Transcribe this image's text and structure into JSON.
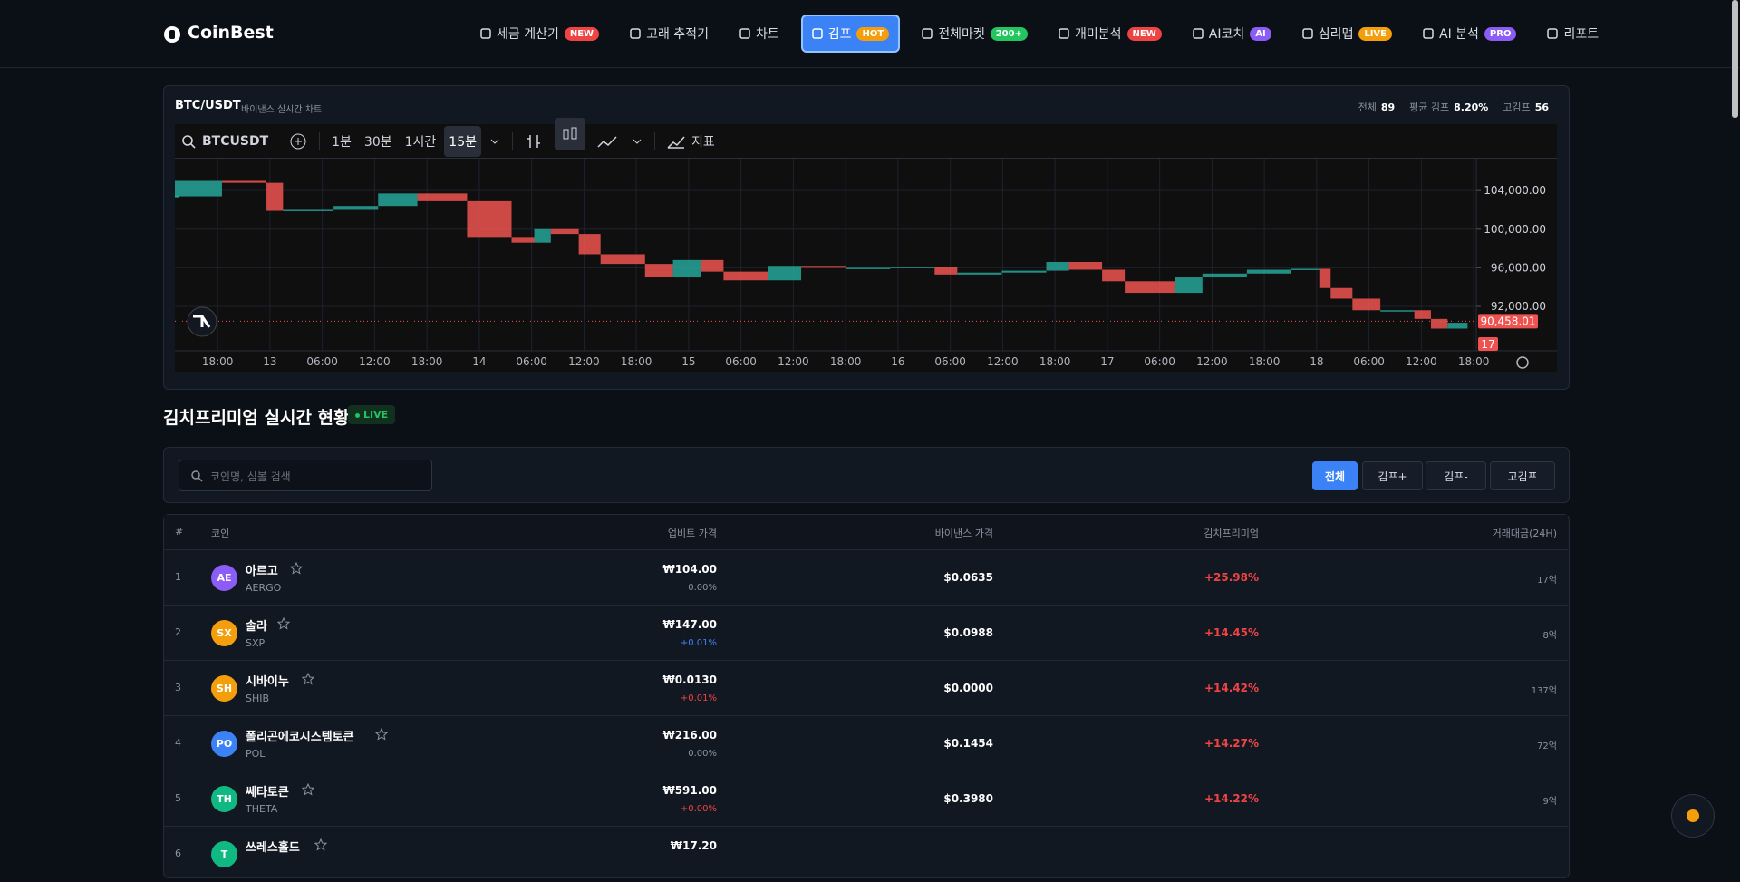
{
  "nav": {
    "logo": "CoinBest",
    "items": [
      {
        "label": "세금 계산기",
        "badge": "NEW",
        "badge_color": "#ef4444"
      },
      {
        "label": "고래 추적기"
      },
      {
        "label": "차트"
      },
      {
        "label": "김프",
        "badge": "HOT",
        "badge_color": "#f59e0b",
        "active": true
      },
      {
        "label": "전체마켓",
        "badge": "200+",
        "badge_color": "#22c55e"
      },
      {
        "label": "개미분석",
        "badge": "NEW",
        "badge_color": "#ef4444"
      },
      {
        "label": "AI코치",
        "badge": "AI",
        "badge_color": "#8b5cf6"
      },
      {
        "label": "심리맵",
        "badge": "LIVE",
        "badge_color": "#f59e0b"
      },
      {
        "label": "AI 분석",
        "badge": "PRO",
        "badge_color": "#8b5cf6"
      },
      {
        "label": "리포트"
      }
    ]
  },
  "chart_panel": {
    "symbol": "BTC/USDT",
    "subtitle": "바이낸스 실시간 차트",
    "stats": [
      {
        "label": "전체",
        "value": "89"
      },
      {
        "label": "평균 김프",
        "value": "8.20%"
      },
      {
        "label": "고김프",
        "value": "56"
      }
    ],
    "toolbar": {
      "search": "BTCUSDT",
      "intervals": [
        "1분",
        "30분",
        "1시간",
        "15분"
      ],
      "active_interval": 3,
      "indicators": "지표"
    }
  },
  "chart_data": {
    "type": "candlestick",
    "up_color": "#26a69a",
    "down_color": "#ef5350",
    "grid": true,
    "x": [
      13.1,
      18.5,
      23.6,
      25.5,
      31.3,
      36.4,
      40.9,
      46.6,
      51.7,
      54.3,
      56.2,
      59.4,
      61.9,
      67.0,
      70.2,
      73.4,
      76.0,
      81.1,
      84.9,
      90.0,
      95.1,
      100.2,
      102.8,
      107.9,
      113.0,
      115.6,
      119.4,
      122.0,
      127.7,
      130.9,
      136.0,
      141.1,
      144.3,
      145.6,
      148.1,
      151.3,
      155.2,
      157.1,
      159.0,
      161.3
    ],
    "values": [
      103400,
      105000,
      104800,
      101900,
      102000,
      102400,
      103700,
      102900,
      99100,
      98600,
      100000,
      99500,
      97400,
      96400,
      95000,
      96800,
      95600,
      94700,
      96200,
      96000,
      96000,
      96100,
      95300,
      95500,
      95700,
      96600,
      95800,
      94600,
      93400,
      95000,
      95400,
      95800,
      95900,
      93900,
      92800,
      91600,
      91600,
      90700,
      89700,
      90300
    ],
    "xlim": [
      13.1,
      162.3
    ],
    "xticks": [
      {
        "value": 18,
        "label": "18:00"
      },
      {
        "value": 24,
        "label": "13"
      },
      {
        "value": 30,
        "label": "06:00"
      },
      {
        "value": 36,
        "label": "12:00"
      },
      {
        "value": 42,
        "label": "18:00"
      },
      {
        "value": 48,
        "label": "14"
      },
      {
        "value": 54,
        "label": "06:00"
      },
      {
        "value": 60,
        "label": "12:00"
      },
      {
        "value": 66,
        "label": "18:00"
      },
      {
        "value": 72,
        "label": "15"
      },
      {
        "value": 78,
        "label": "06:00"
      },
      {
        "value": 84,
        "label": "12:00"
      },
      {
        "value": 90,
        "label": "18:00"
      },
      {
        "value": 96,
        "label": "16"
      },
      {
        "value": 102,
        "label": "06:00"
      },
      {
        "value": 108,
        "label": "12:00"
      },
      {
        "value": 114,
        "label": "18:00"
      },
      {
        "value": 120,
        "label": "17"
      },
      {
        "value": 126,
        "label": "06:00"
      },
      {
        "value": 132,
        "label": "12:00"
      },
      {
        "value": 138,
        "label": "18:00"
      },
      {
        "value": 144,
        "label": "18"
      },
      {
        "value": 150,
        "label": "06:00"
      },
      {
        "value": 156,
        "label": "12:00"
      },
      {
        "value": 162,
        "label": "18:00"
      }
    ],
    "ylim": [
      87400,
      107300
    ],
    "yticks": [
      {
        "value": 92000,
        "label": "92,000.00"
      },
      {
        "value": 96000,
        "label": "96,000.00"
      },
      {
        "value": 100000,
        "label": "100,000.00"
      },
      {
        "value": 104000,
        "label": "104,000.00"
      }
    ],
    "last_price": {
      "value": 90458.01,
      "label": "90,458.01"
    },
    "volume_label": "17"
  },
  "section": {
    "title": "김치프리미엄 실시간 현황",
    "badge": "LIVE"
  },
  "filters": {
    "search_placeholder": "코인명, 심볼 검색",
    "buttons": [
      "전체",
      "김프+",
      "김프-",
      "고김프"
    ],
    "active": 0
  },
  "table": {
    "columns": [
      "#",
      "코인",
      "업비트 가격",
      "바이낸스 가격",
      "김치프리미엄",
      "거래대금(24H)"
    ],
    "rows": [
      {
        "rank": "1",
        "icon": "AE",
        "icon_color": "#8b5cf6",
        "name": "아르고",
        "symbol": "AERGO",
        "upbit": "₩104.00",
        "change": "0.00%",
        "change_color": "#8b93a1",
        "binance": "$0.0635",
        "premium": "+25.98%",
        "volume": "17억"
      },
      {
        "rank": "2",
        "icon": "SX",
        "icon_color": "#f59e0b",
        "name": "솔라",
        "symbol": "SXP",
        "upbit": "₩147.00",
        "change": "+0.01%",
        "change_color": "#3b82f6",
        "binance": "$0.0988",
        "premium": "+14.45%",
        "volume": "8억"
      },
      {
        "rank": "3",
        "icon": "SH",
        "icon_color": "#f59e0b",
        "name": "시바이누",
        "symbol": "SHIB",
        "upbit": "₩0.0130",
        "change": "+0.01%",
        "change_color": "#ef4444",
        "binance": "$0.0000",
        "premium": "+14.42%",
        "volume": "137억"
      },
      {
        "rank": "4",
        "icon": "PO",
        "icon_color": "#3b82f6",
        "name": "폴리곤에코시스템토큰",
        "symbol": "POL",
        "upbit": "₩216.00",
        "change": "0.00%",
        "change_color": "#8b93a1",
        "binance": "$0.1454",
        "premium": "+14.27%",
        "volume": "72억"
      },
      {
        "rank": "5",
        "icon": "TH",
        "icon_color": "#10b981",
        "name": "쎄타토큰",
        "symbol": "THETA",
        "upbit": "₩591.00",
        "change": "+0.00%",
        "change_color": "#ef4444",
        "binance": "$0.3980",
        "premium": "+14.22%",
        "volume": "9억"
      },
      {
        "rank": "6",
        "icon": "T",
        "icon_color": "#10b981",
        "name": "쓰레스홀드",
        "upbit": "₩17.20"
      }
    ]
  }
}
